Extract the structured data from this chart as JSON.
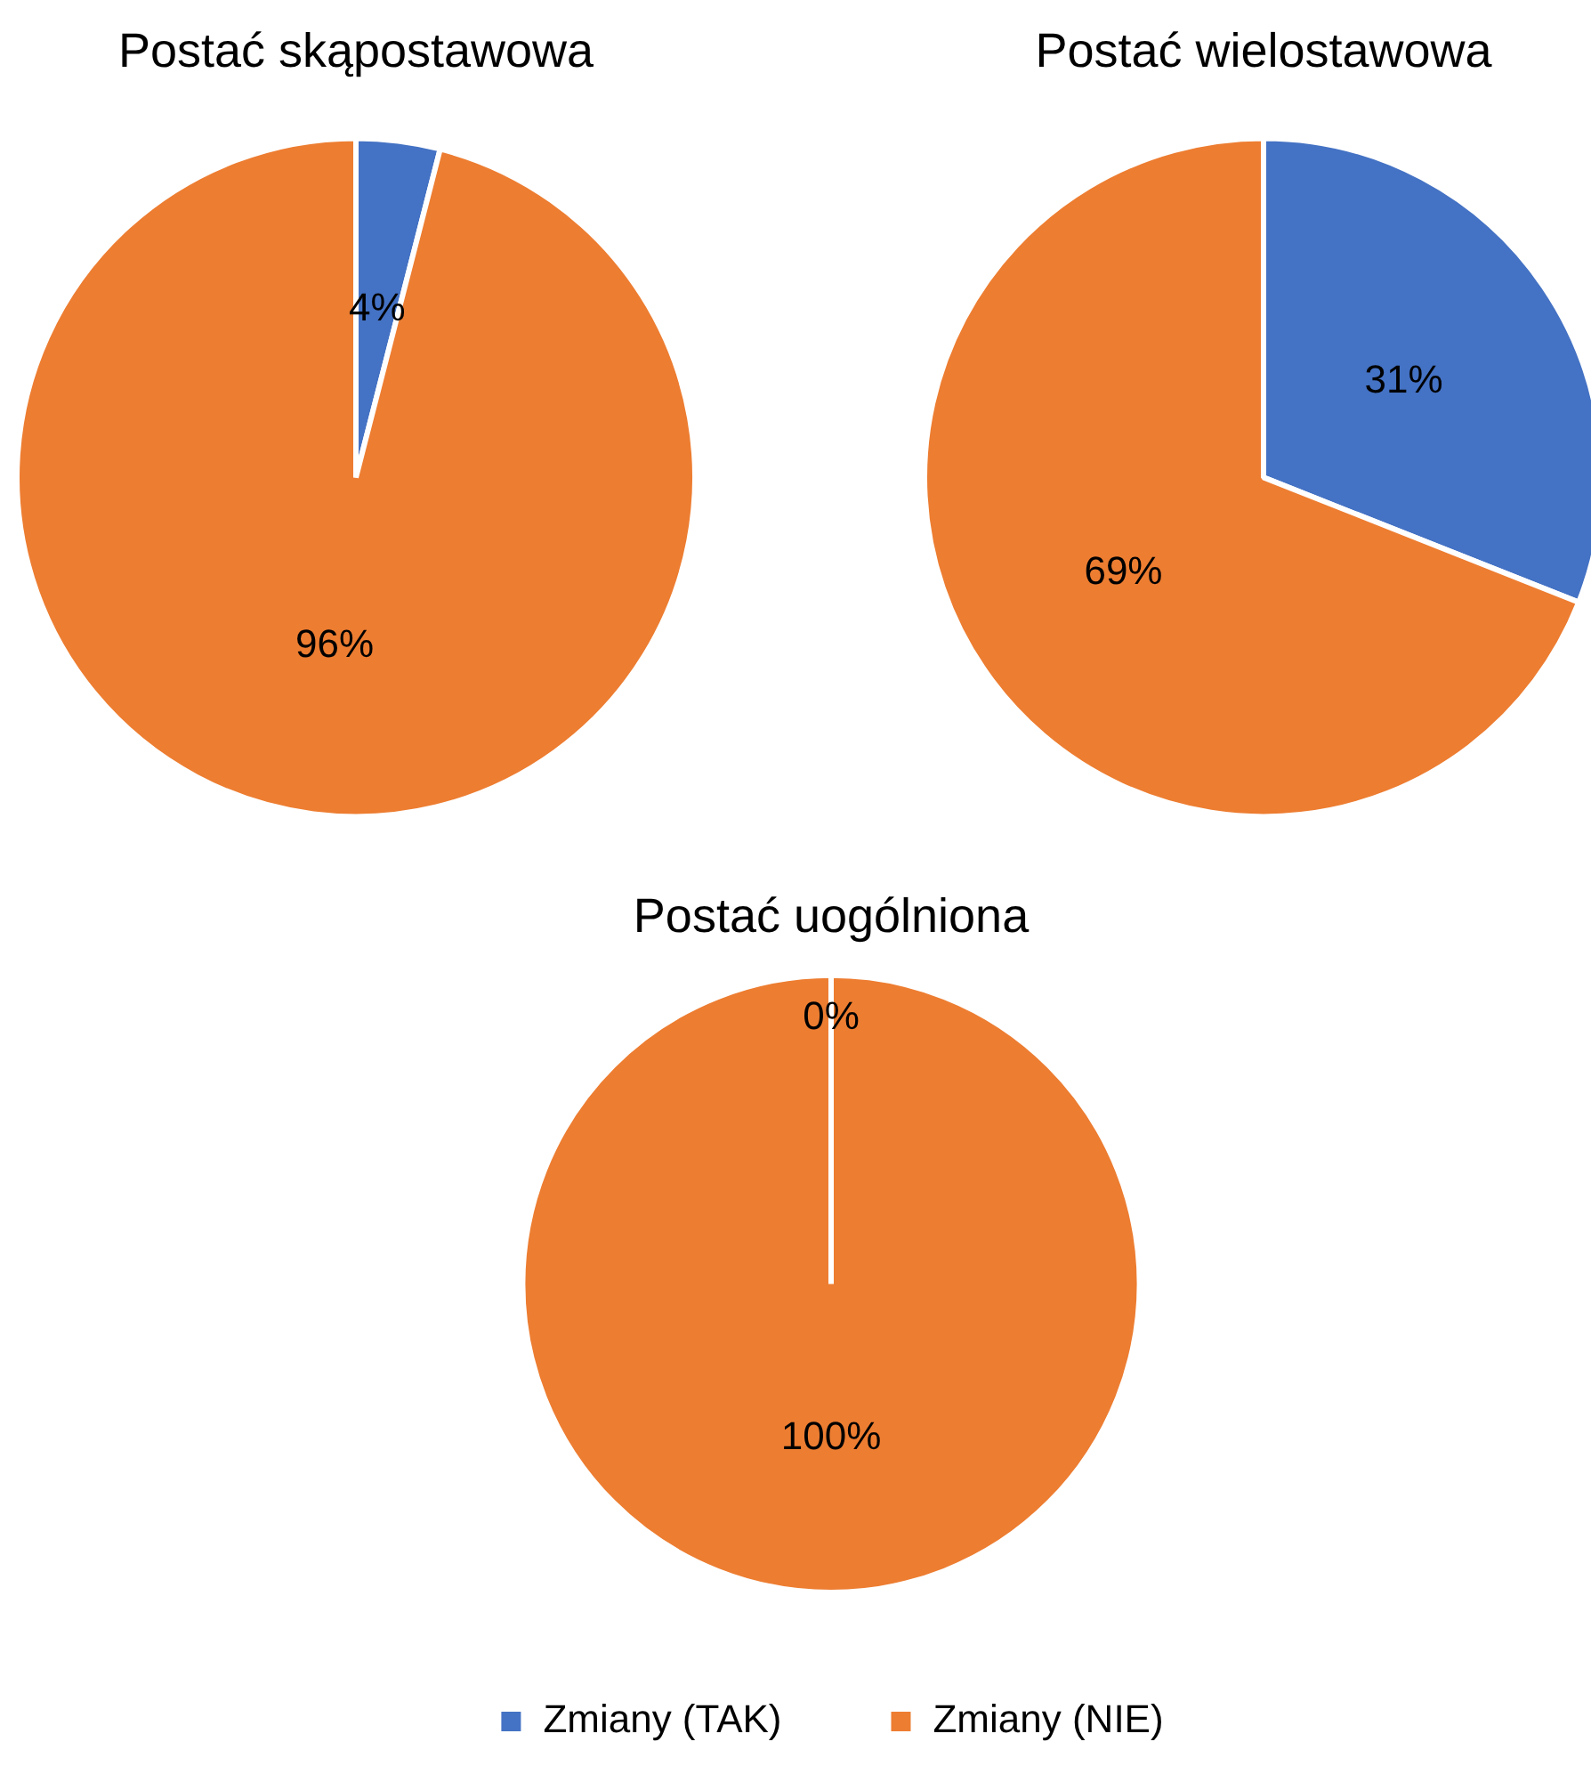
{
  "chart_data": [
    {
      "type": "pie",
      "title": "Postać skąpostawowa",
      "categories": [
        null,
        null
      ],
      "values": [
        4,
        96
      ],
      "value_labels": [
        "4%",
        "96%"
      ],
      "colors": [
        "#4472c4",
        "#ed7d31"
      ],
      "legend": false
    },
    {
      "type": "pie",
      "title": "Postać wielostawowa",
      "categories": [
        null,
        null
      ],
      "values": [
        31,
        69
      ],
      "value_labels": [
        "31%",
        "69%"
      ],
      "colors": [
        "#4472c4",
        "#ed7d31"
      ],
      "legend": false
    },
    {
      "type": "pie",
      "title": "Postać uogólniona",
      "categories": [
        "Zmiany (TAK)",
        "Zmiany (NIE)"
      ],
      "values": [
        0,
        100
      ],
      "value_labels": [
        "0%",
        "100%"
      ],
      "colors": [
        "#4472c4",
        "#ed7d31"
      ],
      "legend": "bottom"
    }
  ]
}
